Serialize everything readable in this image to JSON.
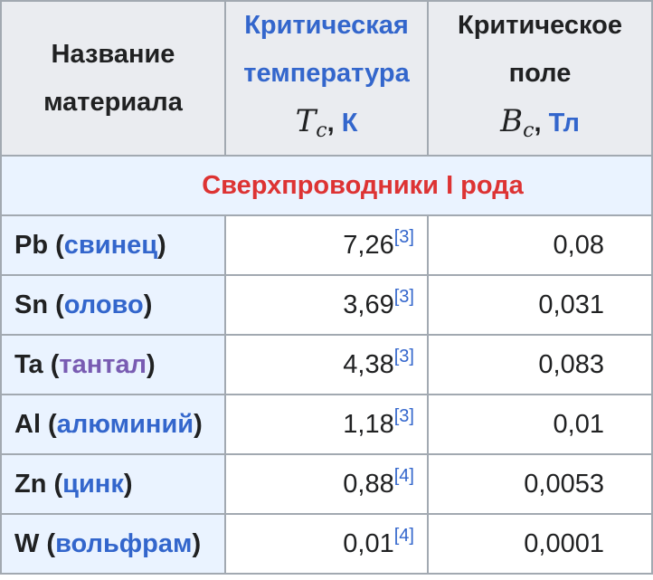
{
  "headers": {
    "col1_line1": "Название",
    "col1_line2": "материала",
    "col2_line1": "Критическая",
    "col2_line2": "температура",
    "col2_symbol": "T",
    "col2_sub": "c",
    "col2_unit": "К",
    "col3_line1": "Критическое",
    "col3_line2": "поле",
    "col3_symbol": "B",
    "col3_sub": "c",
    "col3_unit": "Тл"
  },
  "section_title": "Сверхпроводники I рода",
  "rows": [
    {
      "symbol": "Pb",
      "name": "свинец",
      "visited": false,
      "tc": "7,26",
      "ref": "[3]",
      "bc": "0,08"
    },
    {
      "symbol": "Sn",
      "name": "олово",
      "visited": false,
      "tc": "3,69",
      "ref": "[3]",
      "bc": "0,031"
    },
    {
      "symbol": "Ta",
      "name": "тантал",
      "visited": true,
      "tc": "4,38",
      "ref": "[3]",
      "bc": "0,083"
    },
    {
      "symbol": "Al",
      "name": "алюминий",
      "visited": false,
      "tc": "1,18",
      "ref": "[3]",
      "bc": "0,01"
    },
    {
      "symbol": "Zn",
      "name": "цинк",
      "visited": false,
      "tc": "0,88",
      "ref": "[4]",
      "bc": "0,0053"
    },
    {
      "symbol": "W",
      "name": "вольфрам",
      "visited": false,
      "tc": "0,01",
      "ref": "[4]",
      "bc": "0,0001"
    }
  ],
  "colors": {
    "link": "#3366cc",
    "visited_link": "#795cb2",
    "section_title": "#dd3333",
    "header_bg": "#eaecf0",
    "name_bg": "#eaf3ff",
    "border": "#a2a9b1"
  }
}
